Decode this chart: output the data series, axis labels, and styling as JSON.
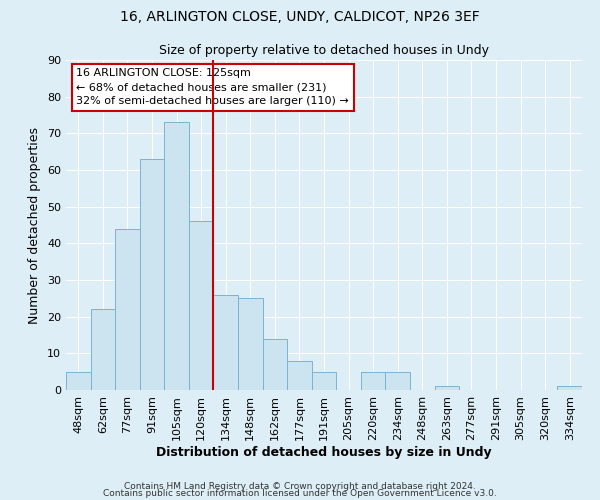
{
  "title": "16, ARLINGTON CLOSE, UNDY, CALDICOT, NP26 3EF",
  "subtitle": "Size of property relative to detached houses in Undy",
  "xlabel": "Distribution of detached houses by size in Undy",
  "ylabel": "Number of detached properties",
  "bar_labels": [
    "48sqm",
    "62sqm",
    "77sqm",
    "91sqm",
    "105sqm",
    "120sqm",
    "134sqm",
    "148sqm",
    "162sqm",
    "177sqm",
    "191sqm",
    "205sqm",
    "220sqm",
    "234sqm",
    "248sqm",
    "263sqm",
    "277sqm",
    "291sqm",
    "305sqm",
    "320sqm",
    "334sqm"
  ],
  "bar_heights": [
    5,
    22,
    44,
    63,
    73,
    46,
    26,
    25,
    14,
    8,
    5,
    0,
    5,
    5,
    0,
    1,
    0,
    0,
    0,
    0,
    1
  ],
  "bar_color": "#cce4f0",
  "bar_edge_color": "#7ab3d0",
  "vline_x_bar_idx": 5,
  "vline_color": "#cc0000",
  "annotation_text": "16 ARLINGTON CLOSE: 125sqm\n← 68% of detached houses are smaller (231)\n32% of semi-detached houses are larger (110) →",
  "annotation_box_edge": "#cc0000",
  "ylim": [
    0,
    90
  ],
  "yticks": [
    0,
    10,
    20,
    30,
    40,
    50,
    60,
    70,
    80,
    90
  ],
  "footer1": "Contains HM Land Registry data © Crown copyright and database right 2024.",
  "footer2": "Contains public sector information licensed under the Open Government Licence v3.0.",
  "background_color": "#deeef6",
  "plot_background": "#deeef6",
  "grid_color": "#ffffff",
  "title_fontsize": 10,
  "subtitle_fontsize": 9,
  "xlabel_fontsize": 9,
  "ylabel_fontsize": 9,
  "tick_fontsize": 8,
  "annotation_fontsize": 8,
  "footer_fontsize": 6.5
}
